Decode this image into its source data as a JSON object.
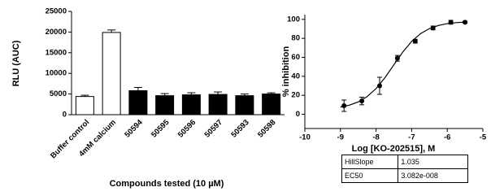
{
  "chart_data": [
    {
      "type": "bar",
      "y_label": "RLU (AUC)",
      "x_label": "Compounds tested (10 µM)",
      "categories": [
        "Buffer control",
        "4mM calcium",
        "50594",
        "50595",
        "50596",
        "50597",
        "50593",
        "50598"
      ],
      "values": [
        4400,
        19900,
        5800,
        4600,
        4800,
        4900,
        4600,
        5000
      ],
      "errors": [
        300,
        600,
        800,
        500,
        500,
        600,
        400,
        300
      ],
      "colors": [
        "#ffffff",
        "#ffffff",
        "#000000",
        "#000000",
        "#000000",
        "#000000",
        "#000000",
        "#000000"
      ],
      "ylim": [
        0,
        25000
      ],
      "yticks": [
        0,
        5000,
        10000,
        15000,
        20000,
        25000
      ]
    },
    {
      "type": "scatter",
      "y_label": "% inhibition",
      "x_label": "Log [KO-202515], M",
      "x": [
        -8.9,
        -8.4,
        -7.9,
        -7.4,
        -6.9,
        -6.4,
        -5.9,
        -5.5
      ],
      "values": [
        9,
        14,
        30,
        59,
        77,
        91,
        97,
        97
      ],
      "errors": [
        6,
        4,
        9,
        3,
        2,
        2,
        2,
        1
      ],
      "color": "#000000",
      "fit": {
        "x": [
          -9,
          -8.75,
          -8.5,
          -8.25,
          -8,
          -7.75,
          -7.5,
          -7.25,
          -7,
          -6.75,
          -6.5,
          -6.25,
          -6,
          -5.75,
          -5.5
        ],
        "values": [
          7.6,
          9.6,
          13.0,
          18.6,
          27.1,
          38.6,
          52.1,
          65.5,
          76.8,
          85.0,
          90.3,
          93.6,
          95.5,
          96.6,
          97.2
        ]
      },
      "xlim": [
        -10,
        -5
      ],
      "xticks": [
        -10,
        -9,
        -8,
        -7,
        -6,
        -5
      ],
      "ylim": [
        -15,
        105
      ],
      "yticks": [
        0,
        20,
        40,
        60,
        80,
        100
      ]
    }
  ],
  "table": {
    "rows": [
      [
        "HillSlope",
        "1.035"
      ],
      [
        "EC50",
        "3.082e-008"
      ]
    ]
  }
}
